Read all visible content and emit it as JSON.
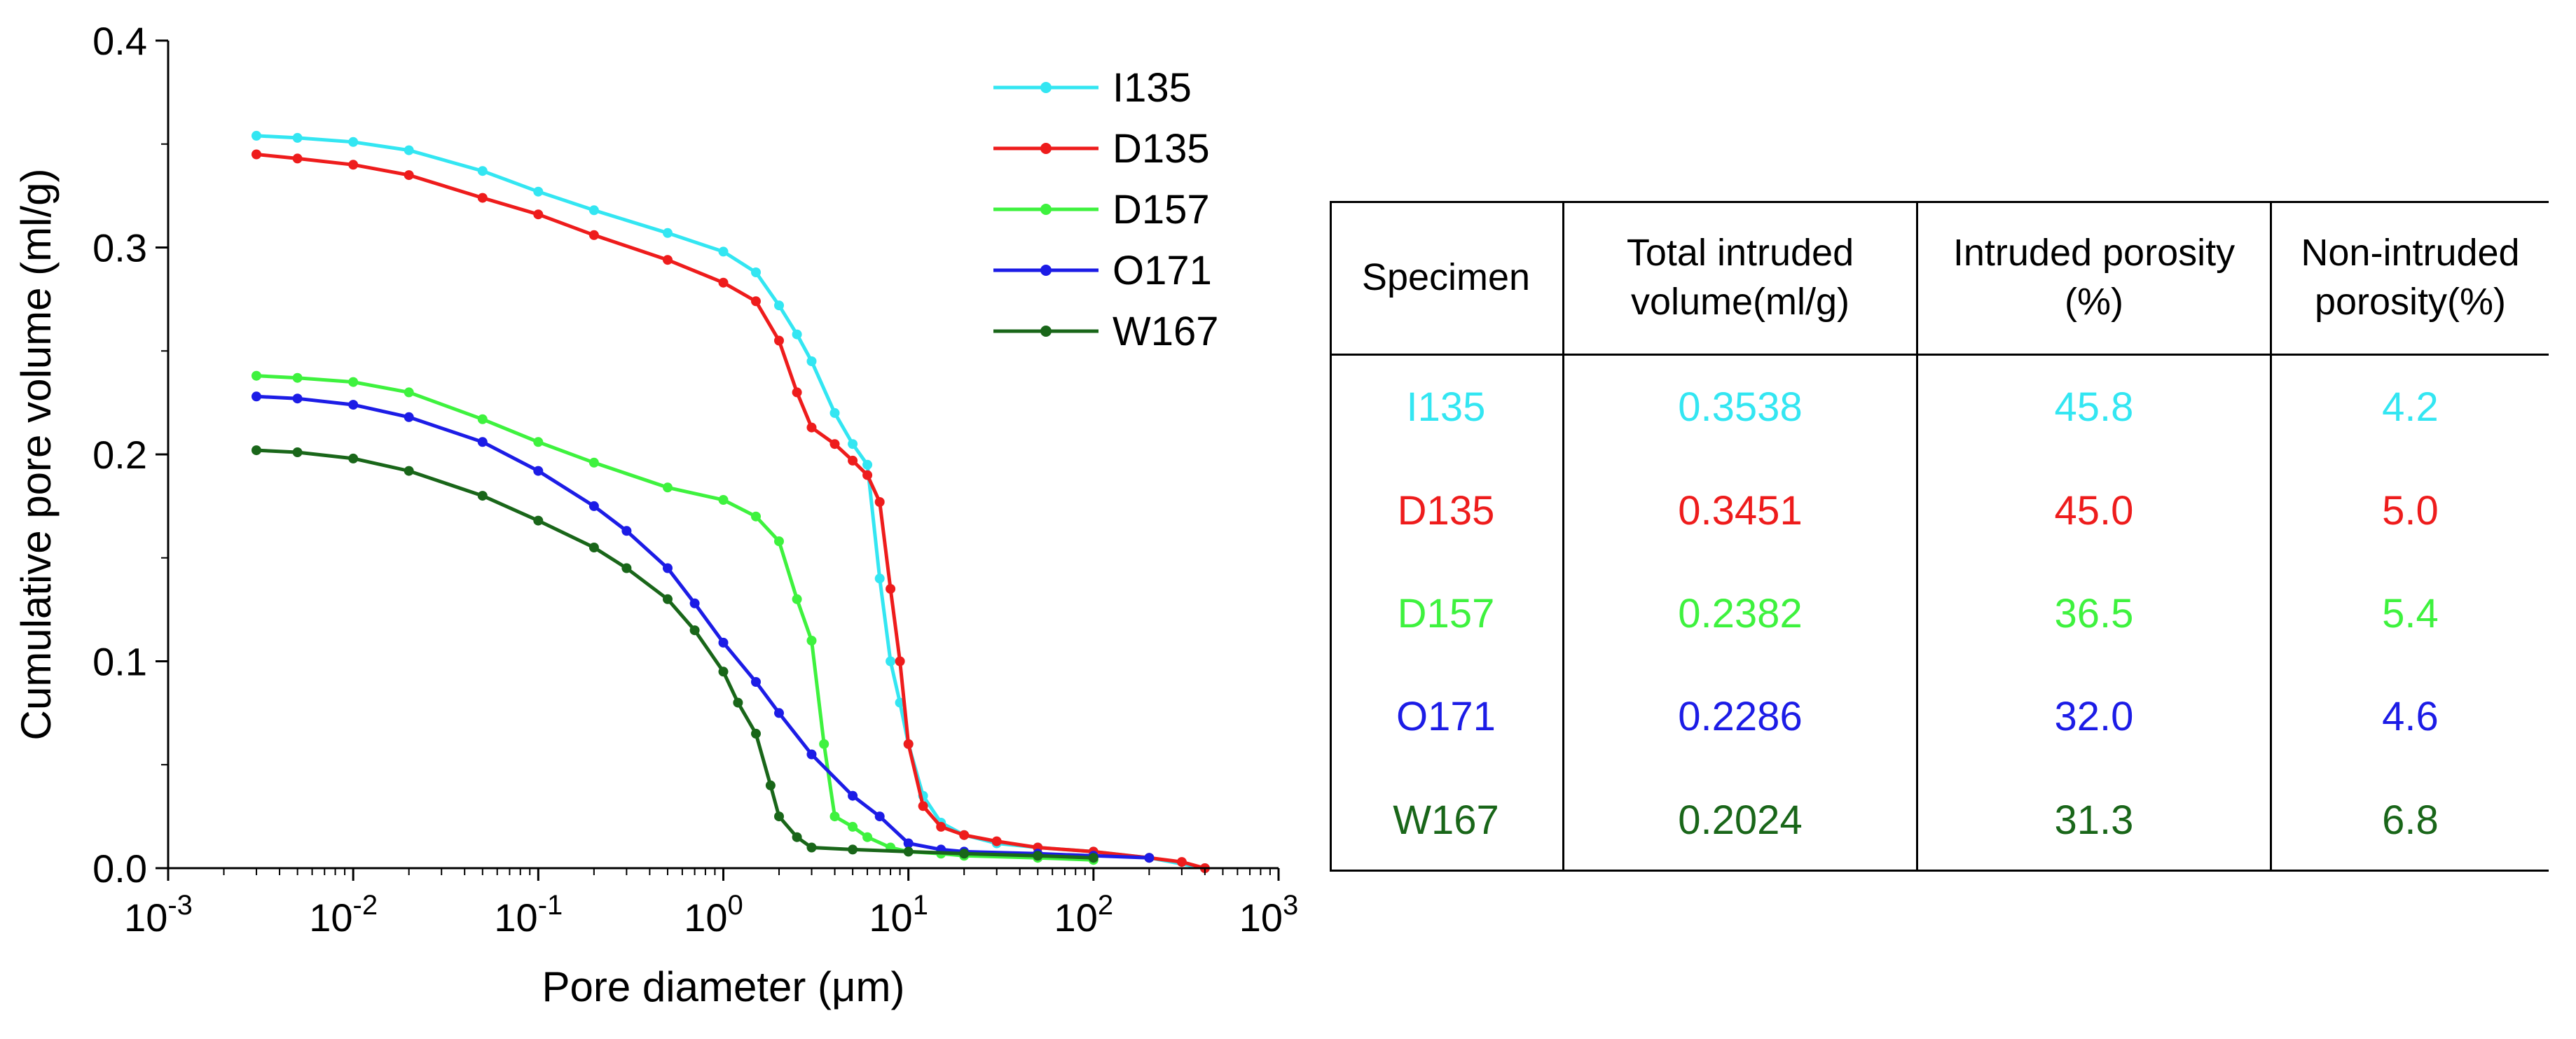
{
  "chart_data": {
    "type": "line",
    "x_scale": "log",
    "xlabel": "Pore diameter (μm)",
    "ylabel": "Cumulative pore volume (ml/g)",
    "xlim": [
      0.001,
      1000
    ],
    "ylim": [
      0.0,
      0.4
    ],
    "x_ticks": [
      {
        "value": 0.001,
        "base": "10",
        "exp": "-3"
      },
      {
        "value": 0.01,
        "base": "10",
        "exp": "-2"
      },
      {
        "value": 0.1,
        "base": "10",
        "exp": "-1"
      },
      {
        "value": 1,
        "base": "10",
        "exp": "0"
      },
      {
        "value": 10,
        "base": "10",
        "exp": "1"
      },
      {
        "value": 100,
        "base": "10",
        "exp": "2"
      },
      {
        "value": 1000,
        "base": "10",
        "exp": "3"
      }
    ],
    "y_ticks": [
      {
        "value": 0.0,
        "label": "0.0"
      },
      {
        "value": 0.1,
        "label": "0.1"
      },
      {
        "value": 0.2,
        "label": "0.2"
      },
      {
        "value": 0.3,
        "label": "0.3"
      },
      {
        "value": 0.4,
        "label": "0.4"
      }
    ],
    "legend_position": "top-right",
    "series": [
      {
        "name": "I135",
        "color": "#33e6f2",
        "x": [
          0.003,
          0.005,
          0.01,
          0.02,
          0.05,
          0.1,
          0.2,
          0.5,
          1.0,
          1.5,
          2.0,
          2.5,
          3.0,
          4.0,
          5.0,
          6.0,
          7.0,
          8.0,
          9.0,
          10.0,
          12.0,
          15.0,
          20.0,
          30.0,
          50.0,
          100.0,
          200.0,
          400.0
        ],
        "y": [
          0.354,
          0.353,
          0.351,
          0.347,
          0.337,
          0.327,
          0.318,
          0.307,
          0.298,
          0.288,
          0.272,
          0.258,
          0.245,
          0.22,
          0.205,
          0.195,
          0.14,
          0.1,
          0.08,
          0.06,
          0.035,
          0.022,
          0.016,
          0.012,
          0.01,
          0.008,
          0.005,
          0.0
        ]
      },
      {
        "name": "D135",
        "color": "#ee1c1c",
        "x": [
          0.003,
          0.005,
          0.01,
          0.02,
          0.05,
          0.1,
          0.2,
          0.5,
          1.0,
          1.5,
          2.0,
          2.5,
          3.0,
          4.0,
          5.0,
          6.0,
          7.0,
          8.0,
          9.0,
          10.0,
          12.0,
          15.0,
          20.0,
          30.0,
          50.0,
          100.0,
          200.0,
          300.0,
          400.0
        ],
        "y": [
          0.345,
          0.343,
          0.34,
          0.335,
          0.324,
          0.316,
          0.306,
          0.294,
          0.283,
          0.274,
          0.255,
          0.23,
          0.213,
          0.205,
          0.197,
          0.19,
          0.177,
          0.135,
          0.1,
          0.06,
          0.03,
          0.02,
          0.016,
          0.013,
          0.01,
          0.008,
          0.005,
          0.003,
          0.0
        ]
      },
      {
        "name": "D157",
        "color": "#3ef23e",
        "x": [
          0.003,
          0.005,
          0.01,
          0.02,
          0.05,
          0.1,
          0.2,
          0.5,
          1.0,
          1.5,
          2.0,
          2.5,
          3.0,
          3.5,
          4.0,
          5.0,
          6.0,
          8.0,
          10.0,
          15.0,
          20.0,
          50.0,
          100.0
        ],
        "y": [
          0.238,
          0.237,
          0.235,
          0.23,
          0.217,
          0.206,
          0.196,
          0.184,
          0.178,
          0.17,
          0.158,
          0.13,
          0.11,
          0.06,
          0.025,
          0.02,
          0.015,
          0.01,
          0.008,
          0.007,
          0.006,
          0.005,
          0.004
        ]
      },
      {
        "name": "O171",
        "color": "#1c1ce6",
        "x": [
          0.003,
          0.005,
          0.01,
          0.02,
          0.05,
          0.1,
          0.2,
          0.3,
          0.5,
          0.7,
          1.0,
          1.5,
          2.0,
          3.0,
          5.0,
          7.0,
          10.0,
          15.0,
          20.0,
          50.0,
          100.0,
          200.0
        ],
        "y": [
          0.228,
          0.227,
          0.224,
          0.218,
          0.206,
          0.192,
          0.175,
          0.163,
          0.145,
          0.128,
          0.109,
          0.09,
          0.075,
          0.055,
          0.035,
          0.025,
          0.012,
          0.009,
          0.008,
          0.007,
          0.006,
          0.005
        ]
      },
      {
        "name": "W167",
        "color": "#196619",
        "x": [
          0.003,
          0.005,
          0.01,
          0.02,
          0.05,
          0.1,
          0.2,
          0.3,
          0.5,
          0.7,
          1.0,
          1.2,
          1.5,
          1.8,
          2.0,
          2.5,
          3.0,
          5.0,
          10.0,
          20.0,
          50.0,
          100.0
        ],
        "y": [
          0.202,
          0.201,
          0.198,
          0.192,
          0.18,
          0.168,
          0.155,
          0.145,
          0.13,
          0.115,
          0.095,
          0.08,
          0.065,
          0.04,
          0.025,
          0.015,
          0.01,
          0.009,
          0.008,
          0.007,
          0.006,
          0.005
        ]
      }
    ]
  },
  "table": {
    "headers": [
      {
        "line1": "Specimen",
        "line2": ""
      },
      {
        "line1": "Total intruded",
        "line2": "volume(ml/g)"
      },
      {
        "line1": "Intruded porosity",
        "line2": "(%)"
      },
      {
        "line1": "Non-intruded",
        "line2": "porosity(%)"
      }
    ],
    "rows": [
      {
        "color": "#33e6f2",
        "cells": [
          "I135",
          "0.3538",
          "45.8",
          "4.2"
        ]
      },
      {
        "color": "#ee1c1c",
        "cells": [
          "D135",
          "0.3451",
          "45.0",
          "5.0"
        ]
      },
      {
        "color": "#3ef23e",
        "cells": [
          "D157",
          "0.2382",
          "36.5",
          "5.4"
        ]
      },
      {
        "color": "#1c1ce6",
        "cells": [
          "O171",
          "0.2286",
          "32.0",
          "4.6"
        ]
      },
      {
        "color": "#196619",
        "cells": [
          "W167",
          "0.2024",
          "31.3",
          "6.8"
        ]
      }
    ]
  }
}
